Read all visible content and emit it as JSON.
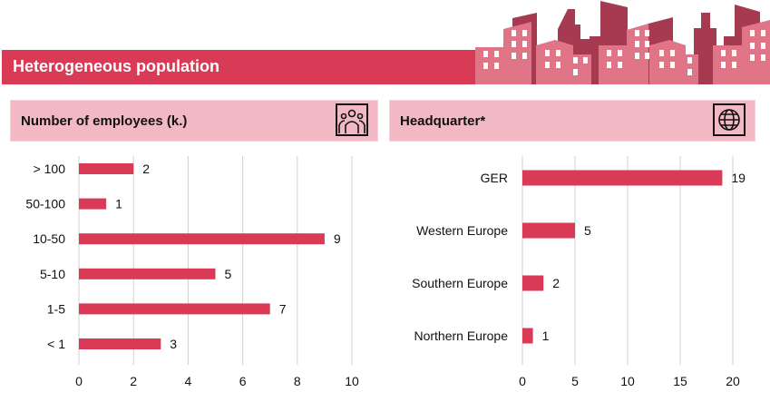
{
  "banner": {
    "title": "Heterogeneous population"
  },
  "colors": {
    "bar": "#d93a56",
    "banner": "#d93a56",
    "panel": "#f2b8c3",
    "skyline_light": "#e07588",
    "skyline_dark": "#a53a50",
    "grid": "#d0d0d0"
  },
  "icons": {
    "skyline": "city-skyline-icon",
    "employees": "people-icon",
    "headquarter": "globe-icon"
  },
  "chart_data": [
    {
      "type": "bar",
      "orientation": "horizontal",
      "title": "Number of employees (k.)",
      "categories": [
        "> 100",
        "50-100",
        "10-50",
        "5-10",
        "1-5",
        "< 1"
      ],
      "values": [
        2,
        1,
        9,
        5,
        7,
        3
      ],
      "xlim": [
        0,
        10
      ],
      "xticks": [
        0,
        2,
        4,
        6,
        8,
        10
      ],
      "grid": true,
      "data_labels": true
    },
    {
      "type": "bar",
      "orientation": "horizontal",
      "title": "Headquarter*",
      "categories": [
        "GER",
        "Western Europe",
        "Southern Europe",
        "Northern Europe"
      ],
      "values": [
        19,
        5,
        2,
        1
      ],
      "xlim": [
        0,
        20
      ],
      "xticks": [
        0,
        5,
        10,
        15,
        20
      ],
      "grid": true,
      "data_labels": true
    }
  ]
}
